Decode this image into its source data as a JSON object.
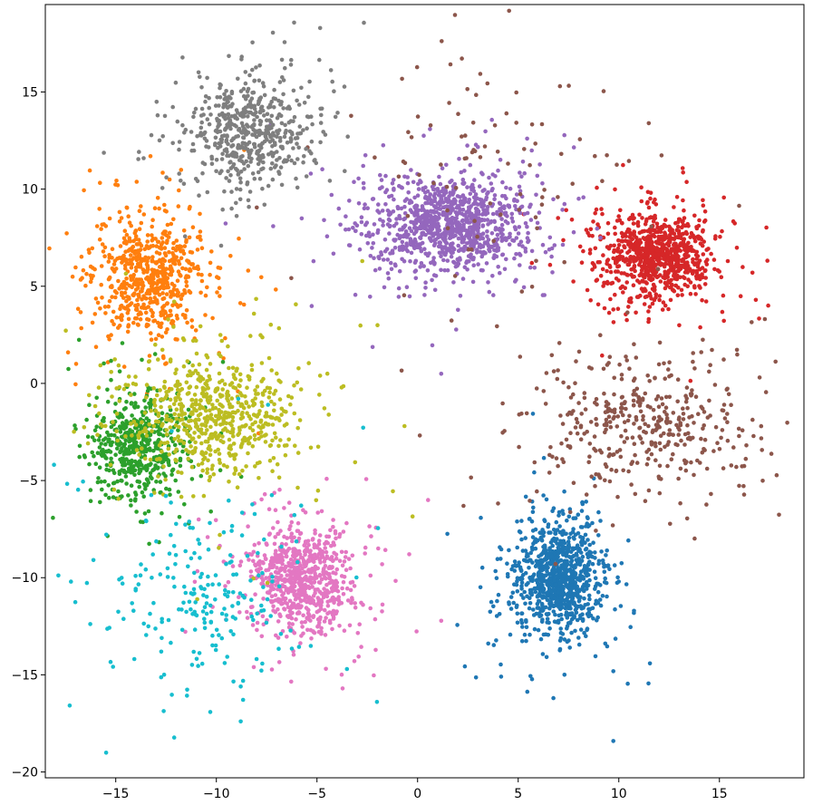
{
  "chart_data": {
    "type": "scatter",
    "title": "",
    "xlabel": "",
    "ylabel": "",
    "xlim": [
      -18.5,
      19.2
    ],
    "ylim": [
      -20.3,
      19.5
    ],
    "xticks": [
      -15,
      -10,
      -5,
      0,
      5,
      10,
      15
    ],
    "yticks": [
      -20,
      -15,
      -10,
      -5,
      0,
      5,
      10,
      15
    ],
    "xtick_labels": [
      "−15",
      "−10",
      "−5",
      "0",
      "5",
      "10",
      "15"
    ],
    "ytick_labels": [
      "−20",
      "−15",
      "−10",
      "−5",
      "0",
      "5",
      "10",
      "15"
    ],
    "grid": false,
    "legend": "none",
    "clusters": [
      {
        "color": "#1f77b4",
        "center": [
          7.0,
          -10.0
        ],
        "spread": [
          1.0,
          1.4
        ],
        "n": 950
      },
      {
        "color": "#ff7f0e",
        "center": [
          -13.3,
          5.5
        ],
        "spread": [
          1.3,
          1.4
        ],
        "n": 650
      },
      {
        "color": "#2ca02c",
        "center": [
          -14.0,
          -3.2
        ],
        "spread": [
          1.1,
          1.3
        ],
        "n": 520
      },
      {
        "color": "#d62728",
        "center": [
          11.8,
          6.6
        ],
        "spread": [
          1.3,
          1.0
        ],
        "n": 850
      },
      {
        "color": "#9467bd",
        "center": [
          1.7,
          8.2
        ],
        "spread": [
          1.8,
          1.2
        ],
        "n": 1050
      },
      {
        "color": "#8c564b",
        "center": [
          11.5,
          -2.0
        ],
        "spread": [
          2.6,
          1.5
        ],
        "n": 430
      },
      {
        "color": "#8c564b",
        "center": [
          3.0,
          12.0
        ],
        "spread": [
          3.6,
          2.6
        ],
        "n": 90
      },
      {
        "color": "#e377c2",
        "center": [
          -5.6,
          -10.0
        ],
        "spread": [
          1.3,
          1.3
        ],
        "n": 750
      },
      {
        "color": "#7f7f7f",
        "center": [
          -8.2,
          13.0
        ],
        "spread": [
          1.4,
          1.3
        ],
        "n": 550
      },
      {
        "color": "#bcbd22",
        "center": [
          -10.3,
          -1.5
        ],
        "spread": [
          2.2,
          1.6
        ],
        "n": 650
      },
      {
        "color": "#17becf",
        "center": [
          -11.0,
          -11.0
        ],
        "spread": [
          2.5,
          2.4
        ],
        "n": 230
      }
    ]
  }
}
